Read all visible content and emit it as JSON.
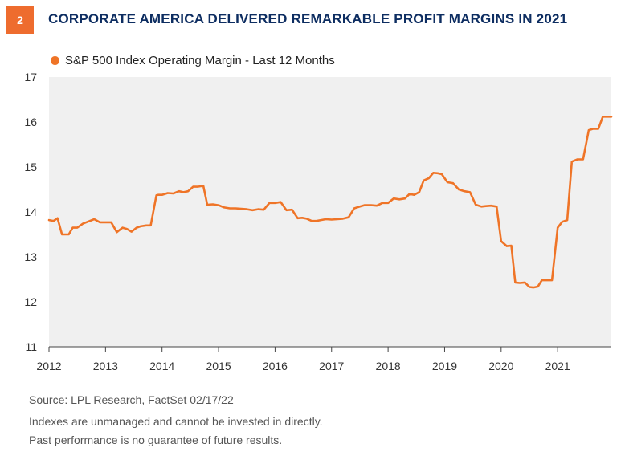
{
  "badge": "2",
  "title": "CORPORATE AMERICA DELIVERED REMARKABLE PROFIT MARGINS IN 2021",
  "colors": {
    "accent": "#ee6c2e",
    "title": "#0d2d61",
    "plot_bg": "#f0f0f0",
    "line": "#ef7427"
  },
  "footer": {
    "source": "Source: LPL Research, FactSet  02/17/22",
    "note1": "Indexes are unmanaged and cannot be invested in directly.",
    "note2": "Past performance is no guarantee of future results."
  },
  "chart_data": {
    "type": "line",
    "title": "",
    "xlabel": "",
    "ylabel": "",
    "legend_placement": "top-left",
    "grid": false,
    "ylim": [
      11,
      17
    ],
    "xlim": [
      2012,
      2021.95
    ],
    "yticks": [
      11,
      12,
      13,
      14,
      15,
      16,
      17
    ],
    "xticks": [
      2012,
      2013,
      2014,
      2015,
      2016,
      2017,
      2018,
      2019,
      2020,
      2021
    ],
    "series": [
      {
        "name": "S&P 500 Index Operating Margin - Last 12 Months",
        "x": [
          2012.0,
          2012.08,
          2012.15,
          2012.23,
          2012.3,
          2012.35,
          2012.42,
          2012.5,
          2012.6,
          2012.7,
          2012.8,
          2012.9,
          2013.0,
          2013.1,
          2013.2,
          2013.3,
          2013.38,
          2013.46,
          2013.55,
          2013.62,
          2013.72,
          2013.8,
          2013.9,
          2013.93,
          2014.0,
          2014.1,
          2014.2,
          2014.3,
          2014.38,
          2014.46,
          2014.55,
          2014.63,
          2014.73,
          2014.8,
          2014.9,
          2015.0,
          2015.1,
          2015.2,
          2015.3,
          2015.4,
          2015.5,
          2015.6,
          2015.7,
          2015.8,
          2015.9,
          2016.0,
          2016.1,
          2016.2,
          2016.3,
          2016.4,
          2016.48,
          2016.56,
          2016.65,
          2016.73,
          2016.81,
          2016.9,
          2017.0,
          2017.1,
          2017.2,
          2017.3,
          2017.4,
          2017.5,
          2017.58,
          2017.7,
          2017.8,
          2017.9,
          2018.0,
          2018.1,
          2018.2,
          2018.3,
          2018.38,
          2018.46,
          2018.55,
          2018.63,
          2018.72,
          2018.8,
          2018.88,
          2018.95,
          2019.05,
          2019.15,
          2019.25,
          2019.35,
          2019.45,
          2019.55,
          2019.65,
          2019.73,
          2019.82,
          2019.92,
          2020.0,
          2020.1,
          2020.18,
          2020.25,
          2020.33,
          2020.42,
          2020.5,
          2020.57,
          2020.65,
          2020.72,
          2020.8,
          2020.9,
          2021.0,
          2021.08,
          2021.17,
          2021.25,
          2021.35,
          2021.45,
          2021.55,
          2021.63,
          2021.72,
          2021.8,
          2021.9,
          2021.95
        ],
        "y": [
          13.82,
          13.8,
          13.86,
          13.5,
          13.5,
          13.5,
          13.65,
          13.65,
          13.74,
          13.79,
          13.84,
          13.77,
          13.77,
          13.77,
          13.55,
          13.65,
          13.62,
          13.56,
          13.65,
          13.68,
          13.7,
          13.7,
          14.37,
          14.38,
          14.38,
          14.42,
          14.41,
          14.46,
          14.44,
          14.46,
          14.56,
          14.56,
          14.58,
          14.16,
          14.17,
          14.15,
          14.1,
          14.08,
          14.08,
          14.07,
          14.06,
          14.04,
          14.06,
          14.05,
          14.2,
          14.2,
          14.22,
          14.04,
          14.05,
          13.86,
          13.87,
          13.85,
          13.8,
          13.8,
          13.82,
          13.84,
          13.83,
          13.84,
          13.85,
          13.88,
          14.08,
          14.12,
          14.15,
          14.15,
          14.14,
          14.2,
          14.2,
          14.3,
          14.28,
          14.3,
          14.4,
          14.38,
          14.44,
          14.7,
          14.75,
          14.87,
          14.86,
          14.84,
          14.66,
          14.64,
          14.5,
          14.46,
          14.44,
          14.16,
          14.12,
          14.13,
          14.14,
          14.12,
          13.35,
          13.24,
          13.25,
          12.43,
          12.42,
          12.43,
          12.33,
          12.32,
          12.34,
          12.48,
          12.48,
          12.48,
          13.65,
          13.78,
          13.82,
          15.12,
          15.17,
          15.17,
          15.82,
          15.85,
          15.85,
          16.12,
          16.12,
          16.12
        ]
      }
    ]
  }
}
